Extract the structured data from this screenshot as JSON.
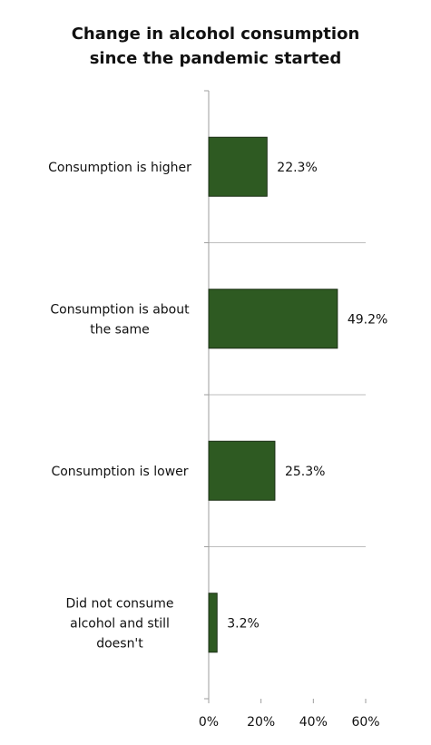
{
  "chart_data": {
    "type": "bar",
    "orientation": "horizontal",
    "title": "Change in alcohol consumption since the pandemic started",
    "title_lines": [
      "Change in alcohol consumption",
      "since the pandemic started"
    ],
    "categories": [
      "Consumption is higher",
      "Consumption is about the same",
      "Consumption is lower",
      "Did not consume alcohol and still doesn't"
    ],
    "category_lines": [
      [
        "Consumption is higher"
      ],
      [
        "Consumption is about",
        "the same"
      ],
      [
        "Consumption is lower"
      ],
      [
        "Did not consume",
        "alcohol and still",
        "doesn't"
      ]
    ],
    "values": [
      22.3,
      49.2,
      25.3,
      3.2
    ],
    "value_labels": [
      "22.3%",
      "49.2%",
      "25.3%",
      "3.2%"
    ],
    "xlim": [
      0,
      60
    ],
    "x_ticks": [
      0,
      20,
      40,
      60
    ],
    "x_tick_labels": [
      "0%",
      "20%",
      "40%",
      "60%"
    ],
    "xlabel": "",
    "ylabel": "",
    "bar_color": "#2e5a22",
    "grid": "horizontal separators between categories",
    "legend": "none"
  }
}
